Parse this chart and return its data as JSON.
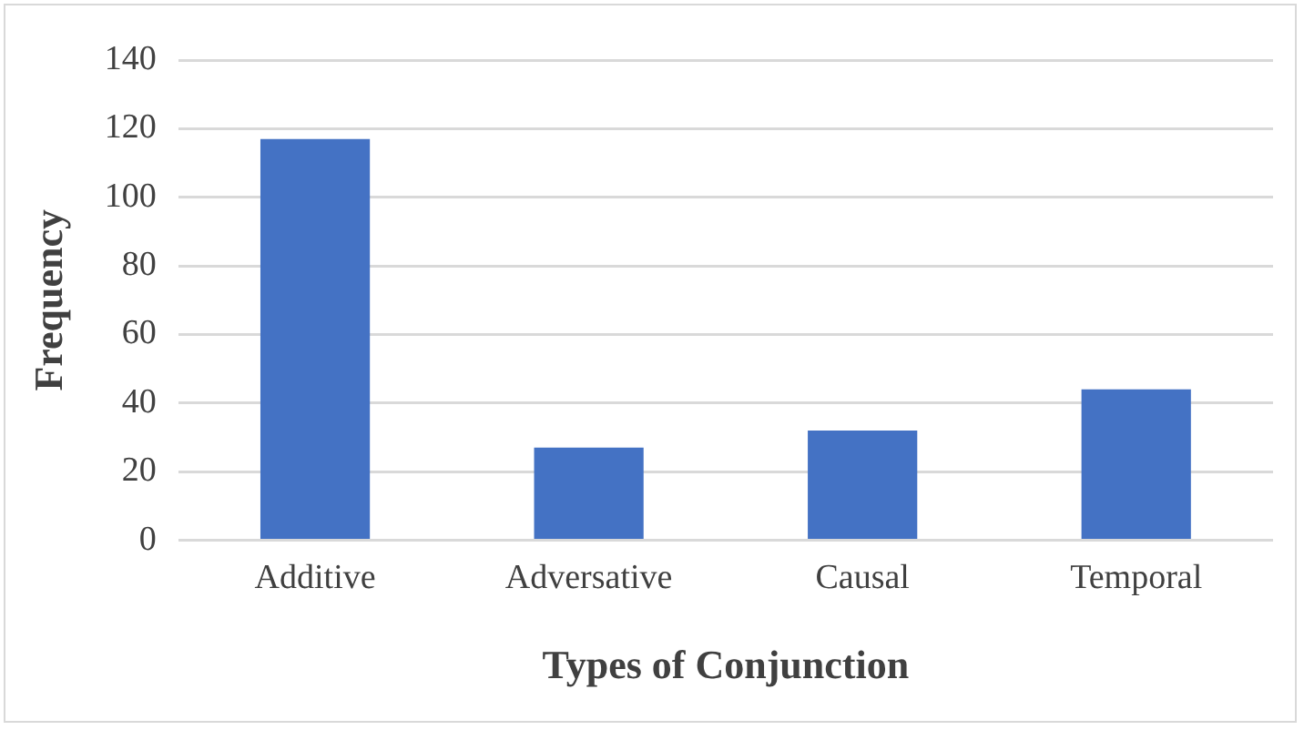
{
  "chart_data": {
    "type": "bar",
    "xlabel": "Types of Conjunction",
    "ylabel": "Frequency",
    "categories": [
      "Additive",
      "Adversative",
      "Causal",
      "Temporal"
    ],
    "values": [
      117,
      27,
      32,
      44
    ],
    "color": "#4472c4",
    "ylim": [
      0,
      140
    ],
    "yticks": [
      0,
      20,
      40,
      60,
      80,
      100,
      120,
      140
    ],
    "grid": "y",
    "legend": false
  }
}
